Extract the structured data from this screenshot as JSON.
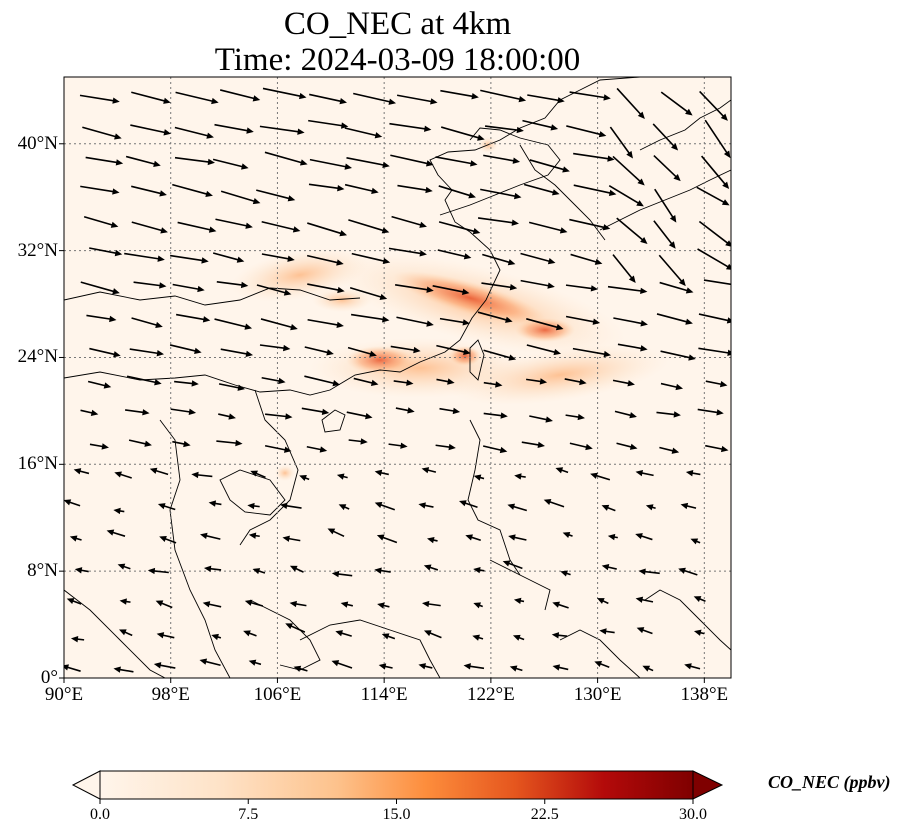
{
  "title": {
    "line1": "CO_NEC at 4km",
    "line2": "Time: 2024-03-09 18:00:00"
  },
  "map": {
    "extent": {
      "lon_min": 90,
      "lon_max": 140,
      "lat_min": 0,
      "lat_max": 45
    },
    "lat_labels": [
      {
        "value": 40,
        "text": "40°N"
      },
      {
        "value": 32,
        "text": "32°N"
      },
      {
        "value": 24,
        "text": "24°N"
      },
      {
        "value": 16,
        "text": "16°N"
      },
      {
        "value": 8,
        "text": "8°N"
      },
      {
        "value": 0,
        "text": "0°"
      }
    ],
    "lon_labels": [
      {
        "value": 90,
        "text": "90°E"
      },
      {
        "value": 98,
        "text": "98°E"
      },
      {
        "value": 106,
        "text": "106°E"
      },
      {
        "value": 114,
        "text": "114°E"
      },
      {
        "value": 122,
        "text": "122°E"
      },
      {
        "value": 130,
        "text": "130°E"
      },
      {
        "value": 138,
        "text": "138°E"
      }
    ],
    "gridlines": "dotted",
    "vector_field": "wind arrows"
  },
  "colorbar": {
    "label": "CO_NEC (ppbv)",
    "min": 0.0,
    "max": 30.0,
    "extend": "both",
    "colormap": [
      "#fff5eb",
      "#fdd0a2",
      "#fd8d3c",
      "#d94801",
      "#a50f15",
      "#67000d"
    ],
    "ticks": [
      {
        "value": 0.0,
        "text": "0.0"
      },
      {
        "value": 7.5,
        "text": "7.5"
      },
      {
        "value": 15.0,
        "text": "15.0"
      },
      {
        "value": 22.5,
        "text": "22.5"
      },
      {
        "value": 30.0,
        "text": "30.0"
      }
    ]
  }
}
